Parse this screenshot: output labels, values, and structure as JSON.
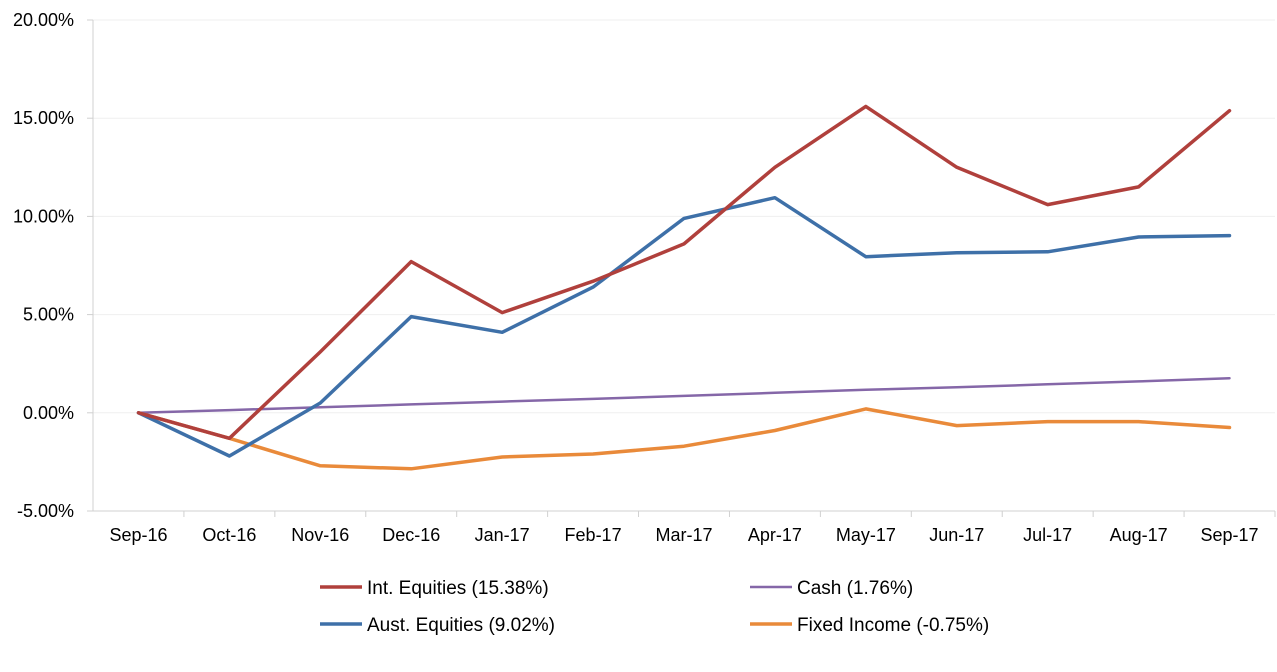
{
  "chart_data": {
    "type": "line",
    "title": "",
    "xlabel": "",
    "ylabel": "",
    "ylim": [
      -5,
      20
    ],
    "ytick_step": 5,
    "ytick_labels": [
      "-5.00%",
      "0.00%",
      "5.00%",
      "10.00%",
      "15.00%",
      "20.00%"
    ],
    "grid": true,
    "legend_position": "bottom",
    "categories": [
      "Sep-16",
      "Oct-16",
      "Nov-16",
      "Dec-16",
      "Jan-17",
      "Feb-17",
      "Mar-17",
      "Apr-17",
      "May-17",
      "Jun-17",
      "Jul-17",
      "Aug-17",
      "Sep-17"
    ],
    "series": [
      {
        "name": "Int. Equities (15.38%)",
        "color": "#B0403C",
        "values": [
          0,
          -1.3,
          3.1,
          7.7,
          5.1,
          6.7,
          8.6,
          12.5,
          15.6,
          12.5,
          10.6,
          11.5,
          15.38
        ]
      },
      {
        "name": "Aust. Equities (9.02%)",
        "color": "#3E70A8",
        "values": [
          0,
          -2.2,
          0.5,
          4.9,
          4.1,
          6.4,
          9.9,
          10.95,
          7.95,
          8.15,
          8.2,
          8.95,
          9.02
        ]
      },
      {
        "name": "Cash (1.76%)",
        "color": "#8567A8",
        "values": [
          0,
          0.14,
          0.28,
          0.43,
          0.57,
          0.71,
          0.86,
          1.02,
          1.17,
          1.3,
          1.45,
          1.6,
          1.76
        ]
      },
      {
        "name": "Fixed Income (-0.75%)",
        "color": "#E98A3A",
        "values": [
          0,
          -1.3,
          -2.7,
          -2.85,
          -2.25,
          -2.1,
          -1.7,
          -0.9,
          0.2,
          -0.65,
          -0.45,
          -0.45,
          -0.75
        ]
      }
    ]
  }
}
